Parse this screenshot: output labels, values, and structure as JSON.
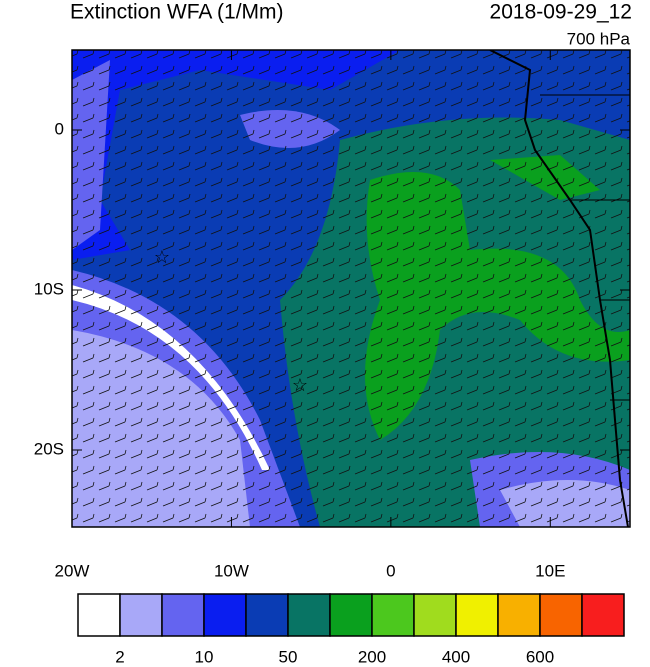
{
  "title": "Extinction WFA (1/Mm)",
  "date": "2018-09-29_12",
  "level": "700 hPa",
  "map": {
    "lon_range": [
      -20,
      15
    ],
    "lat_range": [
      -25,
      5
    ],
    "lon_ticks": [
      {
        "value": -20,
        "label": "20W"
      },
      {
        "value": -10,
        "label": "10W"
      },
      0,
      {
        "value": 10,
        "label": "10E"
      }
    ],
    "lat_ticks": [
      0,
      {
        "value": -10,
        "label": "10S"
      },
      {
        "value": -20,
        "label": "20S"
      }
    ]
  },
  "colorbar": {
    "colors": [
      "#ffffff",
      "#a8a8f8",
      "#6464f0",
      "#0a1ef0",
      "#0a3cb4",
      "#087464",
      "#0aa01e",
      "#4cc81e",
      "#a0dc1e",
      "#f0f000",
      "#f8b000",
      "#f86400",
      "#f81e1e"
    ],
    "labels": [
      "2",
      "10",
      "50",
      "200",
      "400",
      "600"
    ]
  }
}
